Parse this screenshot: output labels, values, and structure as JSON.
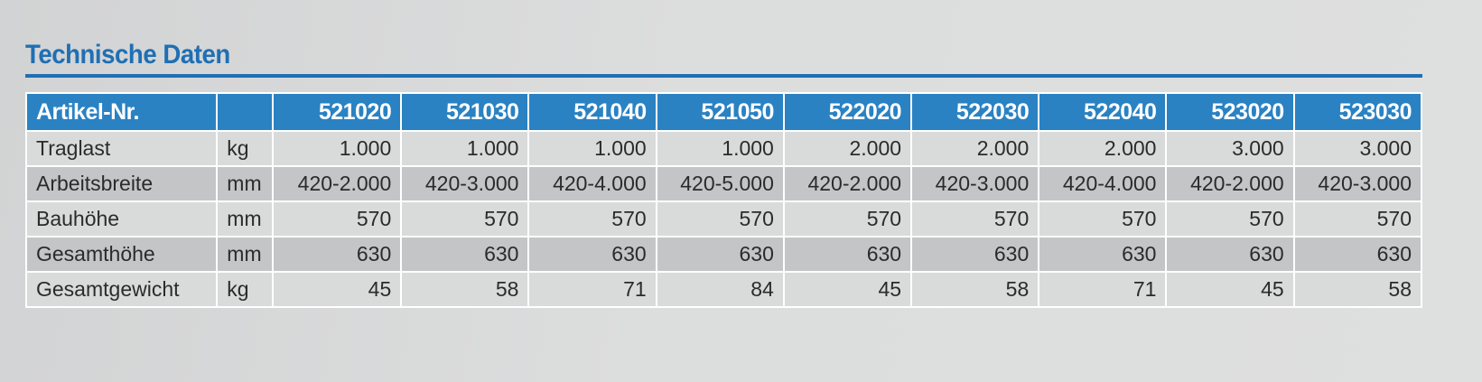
{
  "heading": "Technische Daten",
  "colors": {
    "accent": "#1f6fb4",
    "header_bg": "#2a82c3",
    "row_light": "#d9dada",
    "row_dark": "#c4c5c6"
  },
  "table": {
    "header_label": "Artikel-Nr.",
    "header_unit": "",
    "articles": [
      "521020",
      "521030",
      "521040",
      "521050",
      "522020",
      "522030",
      "522040",
      "523020",
      "523030"
    ],
    "rows": [
      {
        "label": "Traglast",
        "unit": "kg",
        "values": [
          "1.000",
          "1.000",
          "1.000",
          "1.000",
          "2.000",
          "2.000",
          "2.000",
          "3.000",
          "3.000"
        ]
      },
      {
        "label": "Arbeitsbreite",
        "unit": "mm",
        "values": [
          "420-2.000",
          "420-3.000",
          "420-4.000",
          "420-5.000",
          "420-2.000",
          "420-3.000",
          "420-4.000",
          "420-2.000",
          "420-3.000"
        ]
      },
      {
        "label": "Bauhöhe",
        "unit": "mm",
        "values": [
          "570",
          "570",
          "570",
          "570",
          "570",
          "570",
          "570",
          "570",
          "570"
        ]
      },
      {
        "label": "Gesamthöhe",
        "unit": "mm",
        "values": [
          "630",
          "630",
          "630",
          "630",
          "630",
          "630",
          "630",
          "630",
          "630"
        ]
      },
      {
        "label": "Gesamtgewicht",
        "unit": "kg",
        "values": [
          "45",
          "58",
          "71",
          "84",
          "45",
          "58",
          "71",
          "45",
          "58"
        ]
      }
    ]
  }
}
